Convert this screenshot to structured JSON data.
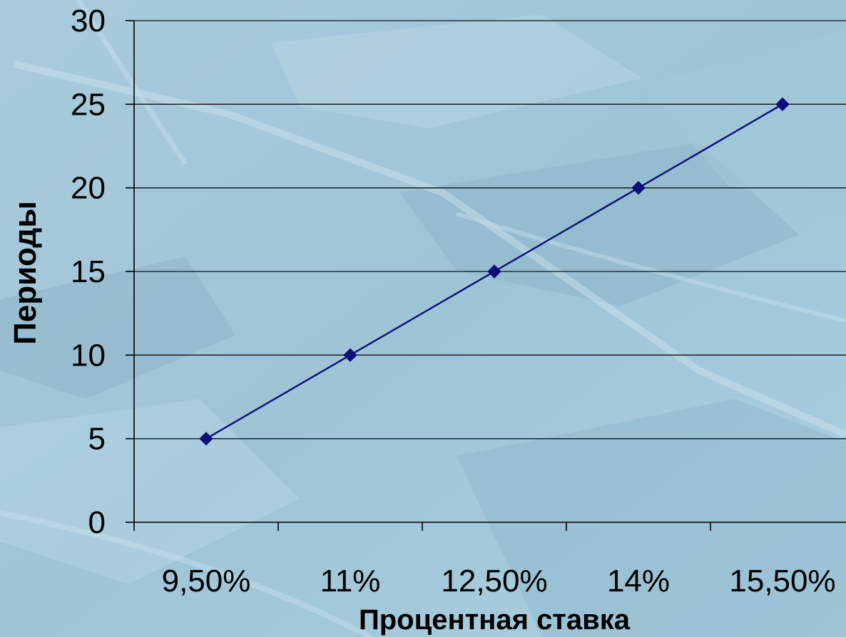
{
  "chart_data": {
    "type": "line",
    "title": "",
    "xlabel": "Процентная ставка",
    "ylabel": "Периоды",
    "categories": [
      "9,50%",
      "11%",
      "12,50%",
      "14%",
      "15,50%"
    ],
    "series": [
      {
        "values": [
          5,
          10,
          15,
          20,
          25
        ]
      }
    ],
    "ylim": [
      0,
      30
    ],
    "yticks": [
      0,
      5,
      10,
      15,
      20,
      25,
      30
    ],
    "grid": true,
    "legend": "none"
  },
  "colors": {
    "line": "#0a0f7a",
    "marker": "#0a0f7a",
    "gridline": "#111111",
    "axis": "#000000",
    "bg_light": "#b3d4e2",
    "bg_mid": "#9cc1d4",
    "bg_dark": "#7fa8bf"
  }
}
